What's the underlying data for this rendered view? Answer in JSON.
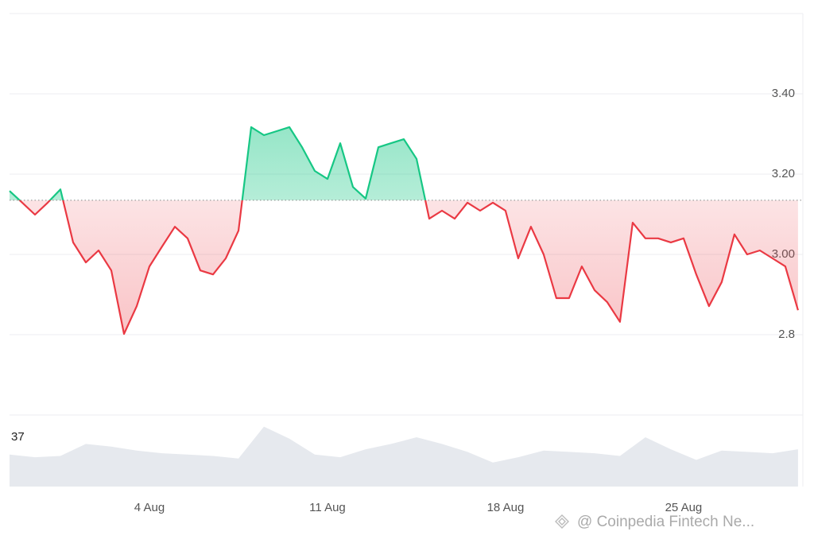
{
  "chart_data": [
    {
      "type": "baseline-line",
      "x": [
        -1.5,
        -1,
        -0.5,
        0,
        0.5,
        1,
        1.5,
        2,
        2.5,
        3,
        3.5,
        4,
        4.5,
        5,
        5.5,
        6,
        6.5,
        7,
        7.5,
        8,
        8.5,
        9,
        9.5,
        10,
        10.5,
        11,
        11.5,
        12,
        12.5,
        13,
        13.5,
        14,
        14.5,
        15,
        15.5,
        16,
        16.5,
        17,
        17.5,
        18,
        18.5,
        19,
        19.5,
        20,
        20.5,
        21,
        21.5,
        22,
        22.5,
        23,
        23.5,
        24,
        24.5,
        25,
        25.5,
        26,
        26.5,
        27,
        27.5,
        28,
        28.5,
        29,
        29.5
      ],
      "values": [
        3.158,
        3.129,
        3.099,
        3.129,
        3.162,
        3.03,
        2.98,
        3.01,
        2.96,
        2.802,
        2.871,
        2.97,
        3.02,
        3.069,
        3.04,
        2.96,
        2.95,
        2.99,
        3.059,
        3.317,
        3.297,
        3.307,
        3.317,
        3.267,
        3.208,
        3.188,
        3.277,
        3.168,
        3.139,
        3.267,
        3.277,
        3.287,
        3.238,
        3.089,
        3.109,
        3.089,
        3.129,
        3.109,
        3.129,
        3.109,
        2.99,
        3.069,
        3.0,
        2.891,
        2.891,
        2.97,
        2.911,
        2.881,
        2.832,
        3.079,
        3.04,
        3.04,
        3.03,
        3.04,
        2.95,
        2.871,
        2.931,
        3.05,
        3.0,
        3.01,
        2.99,
        2.97,
        2.861
      ],
      "baseline": 3.135,
      "up_color": "#16c784",
      "down_color": "#ea3943",
      "xlim": [
        -1.5,
        29.69
      ],
      "xticks": [
        {
          "value": 4,
          "label": "4 Aug"
        },
        {
          "value": 11,
          "label": "11 Aug"
        },
        {
          "value": 18,
          "label": "18 Aug"
        },
        {
          "value": 25,
          "label": "25 Aug"
        }
      ],
      "ylim": [
        2.6,
        3.6
      ],
      "yticks": [
        {
          "value": 3.4,
          "label": "3.40"
        },
        {
          "value": 3.2,
          "label": "3.20"
        },
        {
          "value": 3.0,
          "label": "3.00"
        },
        2.8
      ],
      "grid": true
    },
    {
      "type": "area",
      "x": [
        -1.5,
        -0.5,
        0.5,
        1.5,
        2.5,
        3.5,
        4.5,
        5.5,
        6.5,
        7.5,
        8.5,
        9.5,
        10.5,
        11.5,
        12.5,
        13.5,
        14.5,
        15.5,
        16.5,
        17.5,
        18.5,
        19.5,
        20.5,
        21.5,
        22.5,
        23.5,
        24.5,
        25.5,
        26.5,
        27.5,
        28.5,
        29.5
      ],
      "values": [
        24,
        22,
        23,
        32,
        30,
        27,
        25,
        24,
        23,
        21,
        45,
        36,
        24,
        22,
        28,
        32,
        37,
        32,
        26,
        18,
        22,
        27,
        26,
        25,
        23,
        37,
        28,
        20,
        27,
        26,
        25,
        28
      ],
      "color": "#e6e9ee",
      "ylim": [
        0,
        53.7
      ],
      "yticks": [
        37
      ]
    },
    {
      "watermark": "@ Coinpedia Fintech Ne..."
    }
  ]
}
